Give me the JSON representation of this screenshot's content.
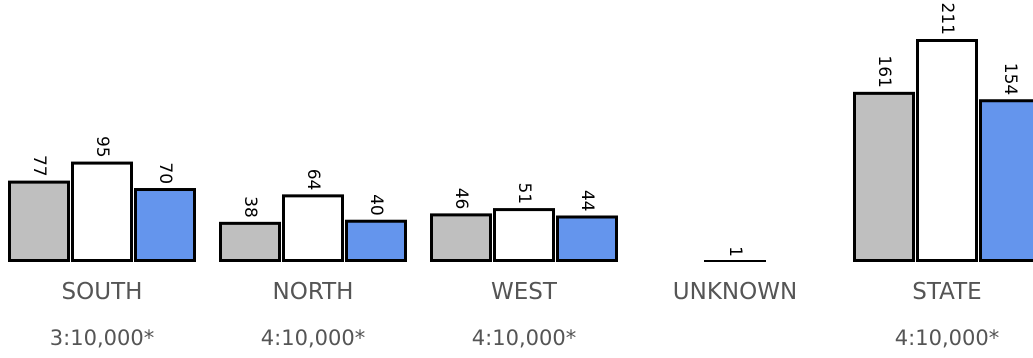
{
  "chart_data": {
    "type": "bar",
    "categories": [
      "SOUTH",
      "NORTH",
      "WEST",
      "UNKNOWN",
      "STATE"
    ],
    "ratios": [
      "3:10,000*",
      "4:10,000*",
      "4:10,000*",
      "",
      "4:10,000*"
    ],
    "series": [
      {
        "values": [
          77,
          38,
          46,
          0,
          161
        ],
        "color": "#bfbfbf"
      },
      {
        "values": [
          95,
          64,
          51,
          1,
          211
        ],
        "color": "#ffffff"
      },
      {
        "values": [
          70,
          40,
          44,
          0,
          154
        ],
        "color": "#6495ed"
      }
    ],
    "bar_labels": [
      [
        "77",
        "95",
        "70"
      ],
      [
        "38",
        "64",
        "40"
      ],
      [
        "46",
        "51",
        "44"
      ],
      [
        "",
        "1",
        ""
      ],
      [
        "161",
        "211",
        "154"
      ]
    ],
    "ylim": [
      0,
      211
    ],
    "grid": false,
    "legend": "none",
    "border_color": "#000000"
  }
}
